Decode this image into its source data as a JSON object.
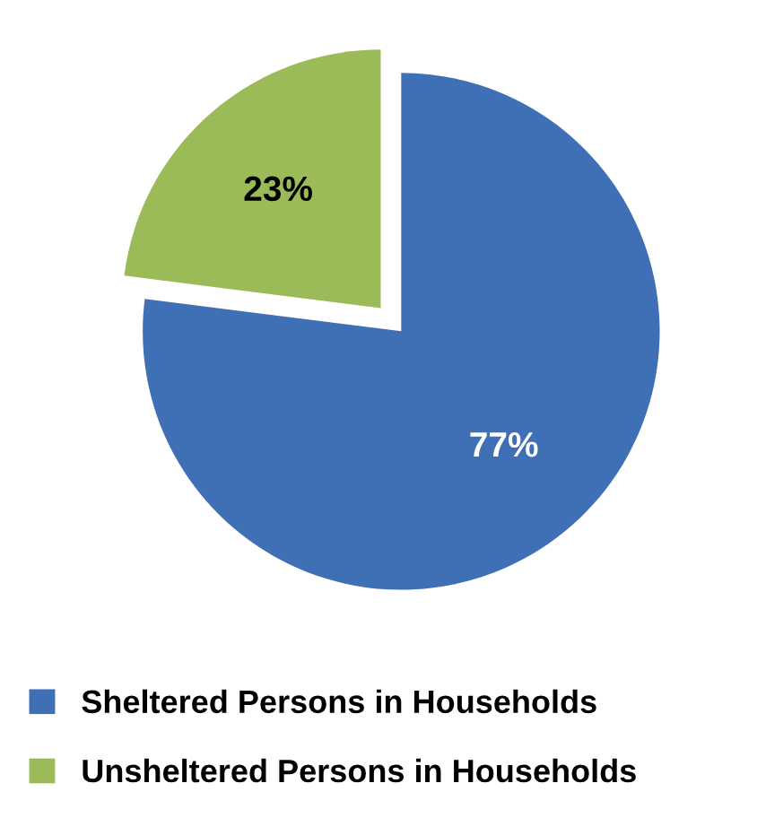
{
  "chart_data": {
    "type": "pie",
    "categories": [
      "Sheltered Persons in Households",
      "Unsheltered Persons in Households"
    ],
    "values": [
      77,
      23
    ],
    "colors": [
      "#3f6fb5",
      "#9bbb59"
    ],
    "value_labels": [
      "77%",
      "23%"
    ],
    "legend": "bottom"
  }
}
